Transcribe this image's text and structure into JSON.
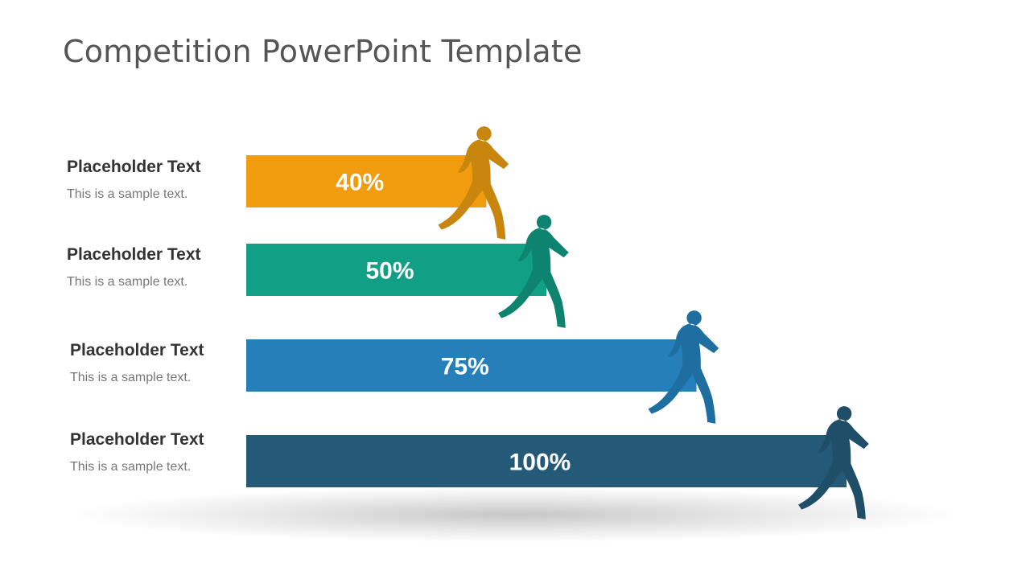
{
  "slide": {
    "title": "Competition PowerPoint Template"
  },
  "rows": [
    {
      "heading": "Placeholder Text",
      "subtext": "This is a sample text.",
      "value_label": "40%",
      "color": "#F09C0E",
      "runner_icon": "female-runner-icon"
    },
    {
      "heading": "Placeholder Text",
      "subtext": "This is a sample text.",
      "value_label": "50%",
      "color": "#11A085",
      "runner_icon": "male-runner-icon"
    },
    {
      "heading": "Placeholder Text",
      "subtext": "This is a sample text.",
      "value_label": "75%",
      "color": "#2580BA",
      "runner_icon": "male-runner-icon"
    },
    {
      "heading": "Placeholder Text",
      "subtext": "This is a sample text.",
      "value_label": "100%",
      "color": "#245A78",
      "runner_icon": "female-runner-icon"
    }
  ],
  "chart_data": {
    "type": "bar",
    "orientation": "horizontal",
    "categories": [
      "Placeholder Text",
      "Placeholder Text",
      "Placeholder Text",
      "Placeholder Text"
    ],
    "values": [
      40,
      50,
      75,
      100
    ],
    "data_labels": [
      "40%",
      "50%",
      "75%",
      "100%"
    ],
    "colors": [
      "#F09C0E",
      "#11A085",
      "#2580BA",
      "#245A78"
    ],
    "runner_colors": [
      "#C8860F",
      "#0E8470",
      "#1E6EA2",
      "#1F4E68"
    ],
    "title": "Competition PowerPoint Template",
    "xlabel": "",
    "ylabel": "",
    "xlim": [
      0,
      100
    ],
    "grid": false,
    "legend": "none"
  }
}
